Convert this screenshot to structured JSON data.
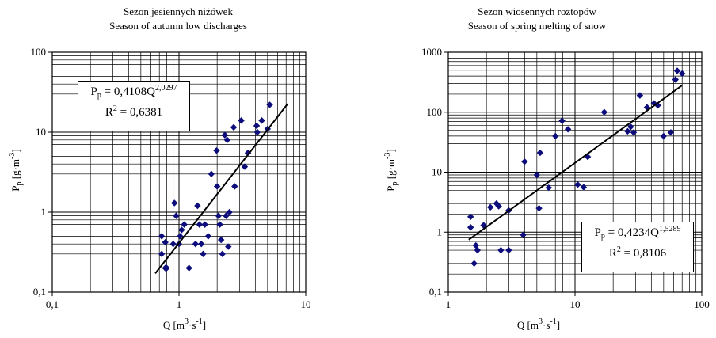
{
  "chart_data": [
    {
      "type": "scatter",
      "title": "Sezon jesiennych niżówek",
      "subtitle": "Season of autumn low discharges",
      "xlabel": "Q [m³·s⁻¹]",
      "ylabel": "Pp [g·m⁻³]",
      "x_scale": "log",
      "y_scale": "log",
      "xlim": [
        0.1,
        10
      ],
      "ylim": [
        0.1,
        100
      ],
      "x_tick_labels": [
        "0,1",
        "1",
        "10"
      ],
      "y_tick_labels": [
        "0,1",
        "1",
        "10",
        "100"
      ],
      "grid": true,
      "marker_color": "#0c0c7a",
      "points": [
        [
          0.73,
          0.5
        ],
        [
          0.73,
          0.3
        ],
        [
          0.78,
          0.42
        ],
        [
          0.78,
          0.2
        ],
        [
          0.8,
          0.2
        ],
        [
          0.9,
          0.4
        ],
        [
          0.92,
          1.3
        ],
        [
          0.95,
          0.9
        ],
        [
          1.0,
          0.4
        ],
        [
          1.02,
          0.5
        ],
        [
          1.05,
          0.6
        ],
        [
          1.1,
          0.7
        ],
        [
          1.2,
          0.2
        ],
        [
          1.35,
          0.4
        ],
        [
          1.4,
          1.2
        ],
        [
          1.45,
          0.7
        ],
        [
          1.5,
          0.4
        ],
        [
          1.55,
          0.3
        ],
        [
          1.6,
          0.7
        ],
        [
          1.7,
          0.5
        ],
        [
          1.8,
          3.0
        ],
        [
          1.98,
          5.9
        ],
        [
          2.0,
          2.1
        ],
        [
          2.05,
          0.9
        ],
        [
          2.1,
          0.7
        ],
        [
          2.15,
          0.45
        ],
        [
          2.2,
          0.3
        ],
        [
          2.3,
          9.2
        ],
        [
          2.35,
          0.9
        ],
        [
          2.4,
          8.0
        ],
        [
          2.45,
          0.37
        ],
        [
          2.5,
          1.0
        ],
        [
          2.7,
          11.5
        ],
        [
          2.75,
          2.1
        ],
        [
          3.1,
          14.0
        ],
        [
          3.3,
          3.7
        ],
        [
          3.5,
          5.5
        ],
        [
          4.1,
          12.0
        ],
        [
          4.15,
          10.0
        ],
        [
          4.5,
          14.0
        ],
        [
          5.0,
          11.0
        ],
        [
          5.2,
          22.0
        ]
      ],
      "trendline": {
        "x_range": [
          0.65,
          7.2
        ]
      },
      "equation": "Pp = 0,4108Q2,0297",
      "r2": "R2 = 0,6381"
    },
    {
      "type": "scatter",
      "title": "Sezon wiosennych roztopów",
      "subtitle": "Season of spring melting of snow",
      "xlabel": "Q [m³·s⁻¹]",
      "ylabel": "Pp [g·m⁻³]",
      "x_scale": "log",
      "y_scale": "log",
      "xlim": [
        1,
        100
      ],
      "ylim": [
        0.1,
        1000
      ],
      "x_tick_labels": [
        "1",
        "10",
        "100"
      ],
      "y_tick_labels": [
        "0,1",
        "1",
        "10",
        "100",
        "1000"
      ],
      "grid": true,
      "marker_color": "#0c0c7a",
      "points": [
        [
          1.5,
          1.8
        ],
        [
          1.5,
          1.2
        ],
        [
          1.6,
          0.3
        ],
        [
          1.65,
          0.6
        ],
        [
          1.7,
          0.5
        ],
        [
          1.9,
          1.3
        ],
        [
          2.15,
          2.6
        ],
        [
          2.4,
          3.0
        ],
        [
          2.5,
          2.7
        ],
        [
          2.6,
          0.5
        ],
        [
          3.0,
          2.3
        ],
        [
          3.0,
          0.5
        ],
        [
          3.9,
          0.9
        ],
        [
          4.0,
          15.0
        ],
        [
          5.0,
          9.0
        ],
        [
          5.2,
          2.5
        ],
        [
          5.3,
          21.0
        ],
        [
          6.2,
          5.5
        ],
        [
          7.0,
          40.0
        ],
        [
          7.9,
          72.0
        ],
        [
          8.8,
          52.0
        ],
        [
          10.5,
          6.2
        ],
        [
          11.7,
          5.6
        ],
        [
          12.6,
          18.0
        ],
        [
          17.0,
          100.0
        ],
        [
          26.0,
          48.0
        ],
        [
          27.5,
          57.0
        ],
        [
          29.0,
          46.0
        ],
        [
          32.5,
          190.0
        ],
        [
          37.0,
          120.0
        ],
        [
          42.0,
          140.0
        ],
        [
          45.0,
          130.0
        ],
        [
          50.0,
          40.0
        ],
        [
          57.0,
          46.0
        ],
        [
          62.0,
          350.0
        ],
        [
          64.0,
          490.0
        ],
        [
          70.0,
          440.0
        ]
      ],
      "trendline": {
        "x_range": [
          1.45,
          70.0
        ]
      },
      "equation": "Pp = 0,4234Q1,5289",
      "r2": "R2 = 0,8106"
    }
  ],
  "panels": {
    "left": {
      "title": "Sezon jesiennych niżówek",
      "subtitle": "Season of autumn low discharges",
      "ylabel_main": "P",
      "ylabel_sub": "p",
      "ylabel_unit": " [g·m",
      "ylabel_exp": "-3",
      "ylabel_close": "]",
      "xlabel_main": "Q [m",
      "xlabel_exp1": "3",
      "xlabel_mid": "·s",
      "xlabel_exp2": "-1",
      "xlabel_close": "]",
      "eq_main": "P",
      "eq_sub": "p",
      "eq_mid": " = 0,4108Q",
      "eq_exp": "2,0297",
      "r2_main": "R",
      "r2_exp": "2",
      "r2_val": " = 0,6381"
    },
    "right": {
      "title": "Sezon wiosennych roztopów",
      "subtitle": "Season of spring melting of snow",
      "ylabel_main": "P",
      "ylabel_sub": "p",
      "ylabel_unit": " [g·m",
      "ylabel_exp": "-3",
      "ylabel_close": "]",
      "xlabel_main": "Q [m",
      "xlabel_exp1": "3",
      "xlabel_mid": "·s",
      "xlabel_exp2": "-1",
      "xlabel_close": "]",
      "eq_main": "P",
      "eq_sub": "p",
      "eq_mid": " = 0,4234Q",
      "eq_exp": "1,5289",
      "r2_main": "R",
      "r2_exp": "2",
      "r2_val": " = 0,8106"
    }
  }
}
